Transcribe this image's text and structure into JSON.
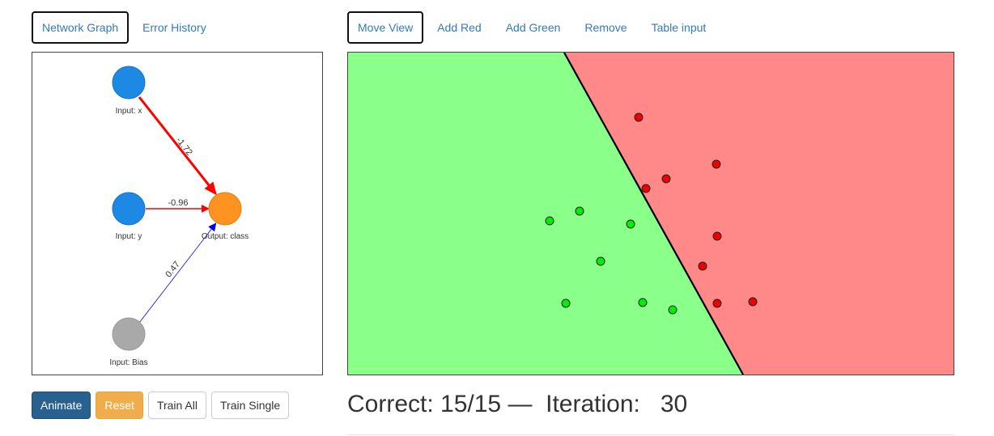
{
  "left_tabs": [
    {
      "label": "Network Graph",
      "active": true
    },
    {
      "label": "Error History",
      "active": false
    }
  ],
  "right_tabs": [
    {
      "label": "Move View",
      "active": true
    },
    {
      "label": "Add Red",
      "active": false
    },
    {
      "label": "Add Green",
      "active": false
    },
    {
      "label": "Remove",
      "active": false
    },
    {
      "label": "Table input",
      "active": false
    }
  ],
  "network": {
    "nodes": {
      "input_x": "Input: x",
      "input_y": "Input: y",
      "input_bias": "Input: Bias",
      "output": "Output: class"
    },
    "weights": {
      "x": "-1.72",
      "y": "-0.96",
      "bias": "0.47"
    },
    "colors": {
      "input": "#1e88e5",
      "bias": "#a9a9a9",
      "output": "#ff9322",
      "negative_edge": "#ff0000",
      "positive_edge": "#0000ff"
    }
  },
  "buttons": {
    "animate": "Animate",
    "reset": "Reset",
    "train_all": "Train All",
    "train_single": "Train Single"
  },
  "status": {
    "correct_label": "Correct:",
    "correct_value": "15/15",
    "separator": "—",
    "iteration_label": "Iteration:",
    "iteration_value": "30"
  },
  "plot": {
    "colors": {
      "green_region": "#8aff8a",
      "red_region": "#ff8888",
      "green_point": "#00ee00",
      "red_point": "#ee0000"
    },
    "red_points_count": 8,
    "green_points_count": 7
  }
}
